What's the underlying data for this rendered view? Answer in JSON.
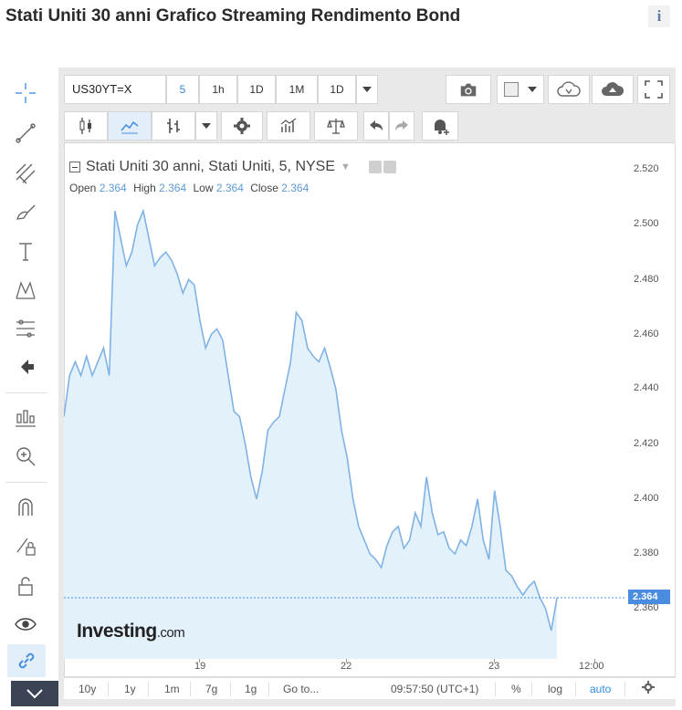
{
  "page": {
    "title": "Stati Uniti 30 anni Grafico Streaming Rendimento Bond",
    "info_icon": "i"
  },
  "toolbar": {
    "symbol": "US30YT=X",
    "intervals": [
      "5",
      "1h",
      "1D",
      "1M",
      "1D"
    ],
    "active_interval": "5"
  },
  "legend": {
    "title": "Stati Uniti 30 anni, Stati Uniti, 5, NYSE",
    "open_label": "Open",
    "open": "2.364",
    "high_label": "High",
    "high": "2.364",
    "low_label": "Low",
    "low": "2.364",
    "close_label": "Close",
    "close": "2.364"
  },
  "axis": {
    "y_ticks": [
      "2.520",
      "2.500",
      "2.480",
      "2.460",
      "2.440",
      "2.420",
      "2.400",
      "2.380",
      "2.360"
    ],
    "x_ticks": [
      "19",
      "22",
      "23",
      "12:00"
    ],
    "last_price": "2.364"
  },
  "brand": {
    "name": "Investing",
    "suffix": ".com"
  },
  "bottom_bar": {
    "ranges": [
      "10y",
      "1y",
      "1m",
      "7g",
      "1g"
    ],
    "goto": "Go to...",
    "time": "09:57:50 (UTC+1)",
    "percent": "%",
    "log": "log",
    "auto": "auto"
  },
  "colors": {
    "line": "#7fb2e5",
    "area": "#e3f1fb",
    "accent": "#2f8ae5"
  },
  "chart_data": {
    "type": "area",
    "title": "Stati Uniti 30 anni, Stati Uniti, 5, NYSE",
    "ylim": [
      2.345,
      2.525
    ],
    "y": [
      2.43,
      2.445,
      2.45,
      2.445,
      2.452,
      2.445,
      2.45,
      2.455,
      2.445,
      2.505,
      2.495,
      2.485,
      2.49,
      2.5,
      2.505,
      2.495,
      2.485,
      2.488,
      2.49,
      2.487,
      2.482,
      2.475,
      2.48,
      2.478,
      2.465,
      2.455,
      2.46,
      2.462,
      2.458,
      2.445,
      2.432,
      2.43,
      2.42,
      2.408,
      2.4,
      2.41,
      2.425,
      2.428,
      2.43,
      2.44,
      2.45,
      2.468,
      2.465,
      2.455,
      2.452,
      2.45,
      2.455,
      2.448,
      2.44,
      2.425,
      2.415,
      2.4,
      2.39,
      2.385,
      2.38,
      2.378,
      2.375,
      2.383,
      2.388,
      2.39,
      2.382,
      2.385,
      2.395,
      2.39,
      2.408,
      2.395,
      2.387,
      2.388,
      2.382,
      2.38,
      2.385,
      2.383,
      2.39,
      2.4,
      2.385,
      2.378,
      2.403,
      2.39,
      2.374,
      2.372,
      2.368,
      2.365,
      2.368,
      2.37,
      2.364,
      2.36,
      2.352,
      2.364
    ]
  }
}
